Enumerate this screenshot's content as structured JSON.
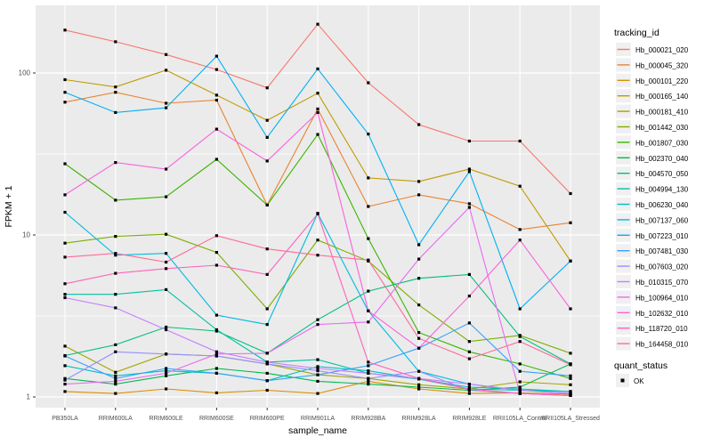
{
  "chart_data": {
    "type": "line",
    "title": "",
    "xlabel": "sample_name",
    "ylabel": "FPKM + 1",
    "y_scale": "log10",
    "y_ticks": [
      1,
      10,
      100
    ],
    "y_minor_ticks": [
      3.162,
      31.62
    ],
    "ylim": [
      1,
      260
    ],
    "grid": true,
    "panel_bg": "#EBEBEB",
    "grid_color": "#FFFFFF",
    "tick_label_color": "#4D4D4D",
    "point_marker": "black-square",
    "categories": [
      "PB350LA",
      "RRIM600LA",
      "RRIM600LE",
      "RRIM600SE",
      "RRIM600PE",
      "RRIM901LA",
      "RRIM928BA",
      "RRIM928LA",
      "RRIM928LE",
      "RRII105LA_Control",
      "RRII105LA_Stressed"
    ],
    "legend": {
      "title": "tracking_id",
      "position": "right"
    },
    "legend2": {
      "title": "quant_status",
      "items": [
        {
          "label": "OK",
          "marker": "black-square"
        }
      ]
    },
    "series": [
      {
        "name": "Hb_000021_020",
        "color": "#F8766D",
        "values": [
          184,
          156,
          130,
          105,
          81,
          200,
          87,
          48,
          38,
          38,
          18
        ]
      },
      {
        "name": "Hb_000045_320",
        "color": "#EA8331",
        "values": [
          66,
          76,
          65,
          68,
          15.3,
          60,
          15,
          17.7,
          15.6,
          10.8,
          11.9
        ]
      },
      {
        "name": "Hb_000101_220",
        "color": "#D89000",
        "values": [
          1.08,
          1.05,
          1.12,
          1.06,
          1.1,
          1.05,
          1.25,
          1.12,
          1.05,
          1.06,
          1.04
        ]
      },
      {
        "name": "Hb_000165_140",
        "color": "#C09B00",
        "values": [
          91,
          82,
          104,
          73,
          51,
          75,
          22.5,
          21.4,
          25.5,
          20,
          6.9
        ]
      },
      {
        "name": "Hb_000181_410",
        "color": "#A3A500",
        "values": [
          2.06,
          1.42,
          1.84,
          1.79,
          1.6,
          1.37,
          1.3,
          1.19,
          1.12,
          1.24,
          1.19
        ]
      },
      {
        "name": "Hb_001442_030",
        "color": "#7CAE00",
        "values": [
          8.9,
          9.8,
          10.1,
          7.8,
          3.5,
          9.3,
          6.9,
          3.7,
          2.2,
          2.4,
          1.86
        ]
      },
      {
        "name": "Hb_001807_030",
        "color": "#39B600",
        "values": [
          27.5,
          16.4,
          17.2,
          29.3,
          15.3,
          41.7,
          9.5,
          2.5,
          1.9,
          1.6,
          1.3
        ]
      },
      {
        "name": "Hb_002370_040",
        "color": "#00BB4E",
        "values": [
          1.3,
          1.2,
          1.35,
          1.5,
          1.4,
          1.25,
          1.2,
          1.15,
          1.1,
          1.15,
          1.6
        ]
      },
      {
        "name": "Hb_004570_050",
        "color": "#00BF7D",
        "values": [
          1.8,
          2.1,
          2.7,
          2.55,
          1.86,
          3.0,
          4.5,
          5.4,
          5.7,
          2.36,
          1.6
        ]
      },
      {
        "name": "Hb_004994_130",
        "color": "#00C1A3",
        "values": [
          4.3,
          4.3,
          4.6,
          2.6,
          1.64,
          1.7,
          1.4,
          1.29,
          1.12,
          1.1,
          1.08
        ]
      },
      {
        "name": "Hb_006230_040",
        "color": "#00BFC4",
        "values": [
          1.56,
          1.35,
          1.45,
          1.4,
          1.26,
          1.54,
          1.45,
          1.29,
          1.15,
          1.12,
          1.08
        ]
      },
      {
        "name": "Hb_007137_060",
        "color": "#00BAE0",
        "values": [
          13.8,
          7.5,
          7.7,
          3.2,
          2.8,
          13.6,
          3.4,
          1.44,
          1.2,
          1.1,
          1.05
        ]
      },
      {
        "name": "Hb_007223_010",
        "color": "#00B0F6",
        "values": [
          76,
          57,
          61,
          127,
          40,
          106,
          42,
          8.7,
          24.6,
          3.5,
          6.9
        ]
      },
      {
        "name": "Hb_007481_030",
        "color": "#35A2FF",
        "values": [
          1.79,
          1.3,
          1.5,
          1.4,
          1.26,
          1.37,
          1.56,
          2.0,
          2.86,
          1.44,
          1.35
        ]
      },
      {
        "name": "Hb_007603_020",
        "color": "#9590FF",
        "values": [
          1.27,
          1.9,
          1.84,
          1.79,
          1.6,
          1.45,
          1.3,
          1.44,
          1.1,
          1.05,
          1.02
        ]
      },
      {
        "name": "Hb_010315_070",
        "color": "#C77CFF",
        "values": [
          4.1,
          3.55,
          2.6,
          1.9,
          1.64,
          1.5,
          1.4,
          1.3,
          1.2,
          1.1,
          1.05
        ]
      },
      {
        "name": "Hb_100964_010",
        "color": "#E76BF3",
        "values": [
          1.2,
          1.25,
          1.4,
          1.84,
          1.86,
          2.8,
          2.9,
          7.1,
          14.8,
          1.05,
          1.02
        ]
      },
      {
        "name": "Hb_102632_010",
        "color": "#FA62DB",
        "values": [
          17.7,
          28,
          25.5,
          45,
          28.6,
          57,
          3.4,
          2.0,
          4.2,
          9.3,
          3.5
        ]
      },
      {
        "name": "Hb_118720_010",
        "color": "#FF62BC",
        "values": [
          5.0,
          5.8,
          6.2,
          6.5,
          5.7,
          13.5,
          1.64,
          1.3,
          1.12,
          1.05,
          1.02
        ]
      },
      {
        "name": "Hb_164458_010",
        "color": "#FF6A98",
        "values": [
          7.3,
          7.7,
          6.8,
          9.9,
          8.2,
          7.5,
          7.0,
          2.3,
          1.72,
          2.2,
          1.58
        ]
      }
    ]
  }
}
